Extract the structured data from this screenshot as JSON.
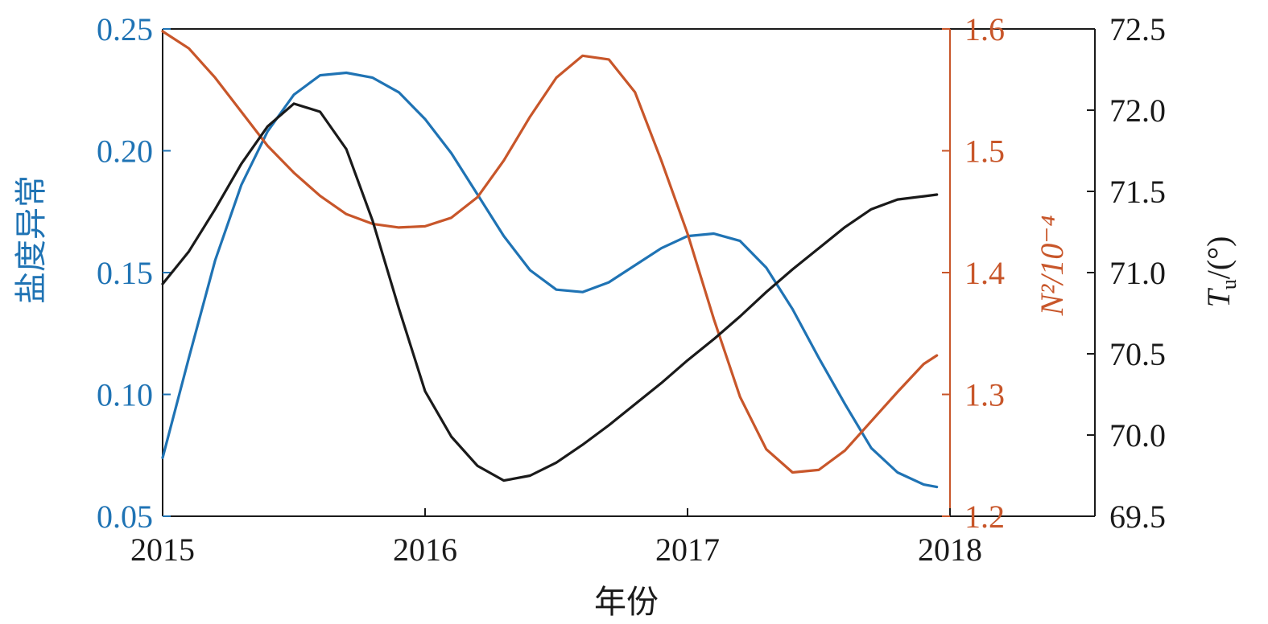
{
  "chart_data": {
    "type": "line",
    "xlabel": "年份",
    "x_ticks": [
      "2015",
      "2016",
      "2017",
      "2018"
    ],
    "xlim": [
      2015,
      2018
    ],
    "axes": {
      "left": {
        "label": "盐度异常",
        "ylim": [
          0.05,
          0.25
        ],
        "ticks": [
          "0.05",
          "0.10",
          "0.15",
          "0.20",
          "0.25"
        ],
        "color": "#1f73b4"
      },
      "right1": {
        "label": "N²/10⁻⁴",
        "ylim": [
          1.2,
          1.6
        ],
        "ticks": [
          "1.2",
          "1.3",
          "1.4",
          "1.5",
          "1.6"
        ],
        "color": "#c8562a"
      },
      "right2": {
        "label": "Tu/(°)",
        "label_main": "T",
        "label_sub": "u",
        "label_rest": "/(°)",
        "ylim": [
          69.5,
          72.5
        ],
        "ticks": [
          "69.5",
          "70.0",
          "70.5",
          "71.0",
          "71.5",
          "72.0",
          "72.5"
        ],
        "color": "#1a1a1a"
      }
    },
    "series": [
      {
        "axis": "left",
        "color": "#1f73b4",
        "x": [
          2015.0,
          2015.1,
          2015.2,
          2015.3,
          2015.4,
          2015.5,
          2015.6,
          2015.7,
          2015.8,
          2015.9,
          2016.0,
          2016.1,
          2016.2,
          2016.3,
          2016.4,
          2016.5,
          2016.6,
          2016.7,
          2016.8,
          2016.9,
          2017.0,
          2017.1,
          2017.2,
          2017.3,
          2017.4,
          2017.5,
          2017.6,
          2017.7,
          2017.8,
          2017.9,
          2017.95
        ],
        "y": [
          0.074,
          0.115,
          0.155,
          0.186,
          0.208,
          0.223,
          0.231,
          0.232,
          0.23,
          0.224,
          0.213,
          0.199,
          0.182,
          0.165,
          0.151,
          0.143,
          0.142,
          0.146,
          0.153,
          0.16,
          0.165,
          0.166,
          0.163,
          0.152,
          0.135,
          0.115,
          0.096,
          0.078,
          0.068,
          0.063,
          0.062
        ]
      },
      {
        "axis": "right1",
        "color": "#c8562a",
        "x": [
          2015.0,
          2015.1,
          2015.2,
          2015.3,
          2015.4,
          2015.5,
          2015.6,
          2015.7,
          2015.8,
          2015.9,
          2016.0,
          2016.1,
          2016.2,
          2016.3,
          2016.4,
          2016.5,
          2016.6,
          2016.7,
          2016.8,
          2016.9,
          2017.0,
          2017.1,
          2017.2,
          2017.3,
          2017.4,
          2017.5,
          2017.6,
          2017.7,
          2017.8,
          2017.9,
          2017.95
        ],
        "y": [
          1.598,
          1.584,
          1.56,
          1.532,
          1.504,
          1.482,
          1.463,
          1.448,
          1.44,
          1.437,
          1.438,
          1.445,
          1.462,
          1.492,
          1.528,
          1.56,
          1.578,
          1.575,
          1.548,
          1.492,
          1.432,
          1.362,
          1.298,
          1.255,
          1.236,
          1.238,
          1.254,
          1.278,
          1.302,
          1.325,
          1.332
        ]
      },
      {
        "axis": "right2",
        "color": "#1a1a1a",
        "x": [
          2015.0,
          2015.1,
          2015.2,
          2015.3,
          2015.4,
          2015.5,
          2015.6,
          2015.7,
          2015.8,
          2015.9,
          2016.0,
          2016.1,
          2016.2,
          2016.3,
          2016.4,
          2016.5,
          2016.6,
          2016.7,
          2016.8,
          2016.9,
          2017.0,
          2017.1,
          2017.2,
          2017.3,
          2017.4,
          2017.5,
          2017.6,
          2017.7,
          2017.8,
          2017.9,
          2017.95
        ],
        "y": [
          70.93,
          71.13,
          71.39,
          71.67,
          71.9,
          72.04,
          71.99,
          71.76,
          71.32,
          70.78,
          70.27,
          69.99,
          69.81,
          69.72,
          69.75,
          69.83,
          69.94,
          70.06,
          70.19,
          70.32,
          70.46,
          70.59,
          70.73,
          70.88,
          71.02,
          71.15,
          71.28,
          71.39,
          71.45,
          71.47,
          71.48
        ]
      }
    ]
  }
}
